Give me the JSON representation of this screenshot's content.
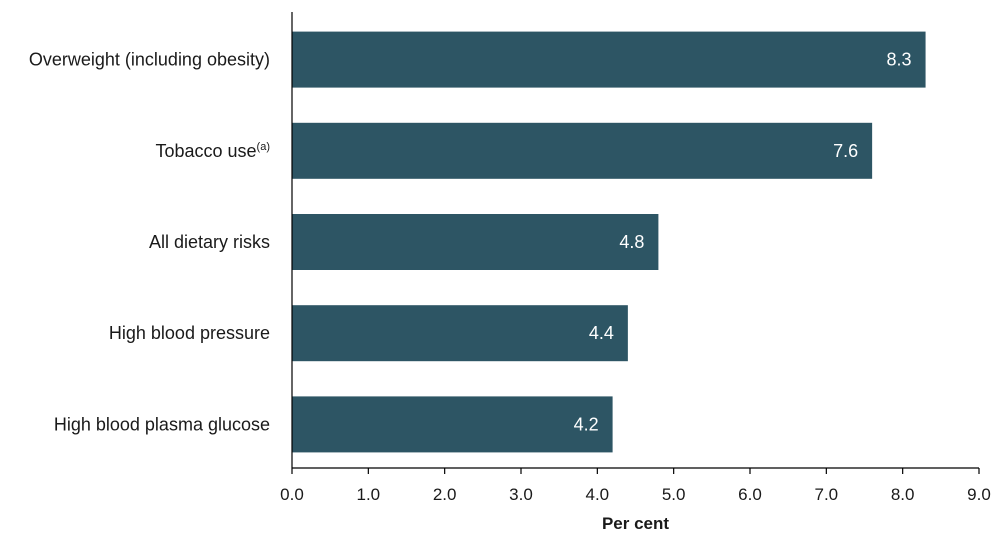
{
  "chart_data": {
    "type": "bar",
    "orientation": "horizontal",
    "categories": [
      {
        "label": "Overweight (including obesity)",
        "sup": ""
      },
      {
        "label": "Tobacco use",
        "sup": "(a)"
      },
      {
        "label": "All dietary risks",
        "sup": ""
      },
      {
        "label": "High blood pressure",
        "sup": ""
      },
      {
        "label": "High blood plasma glucose",
        "sup": ""
      }
    ],
    "values": [
      8.3,
      7.6,
      4.8,
      4.4,
      4.2
    ],
    "value_labels": [
      "8.3",
      "7.6",
      "4.8",
      "4.4",
      "4.2"
    ],
    "xlabel": "Per cent",
    "ylabel": "",
    "xlim": [
      0,
      9
    ],
    "ticks": [
      0,
      1,
      2,
      3,
      4,
      5,
      6,
      7,
      8,
      9
    ],
    "tick_labels": [
      "0.0",
      "1.0",
      "2.0",
      "3.0",
      "4.0",
      "5.0",
      "6.0",
      "7.0",
      "8.0",
      "9.0"
    ],
    "grid": false,
    "legend": "none",
    "bar_color": "#2d5564",
    "value_label_color": "#ffffff"
  }
}
